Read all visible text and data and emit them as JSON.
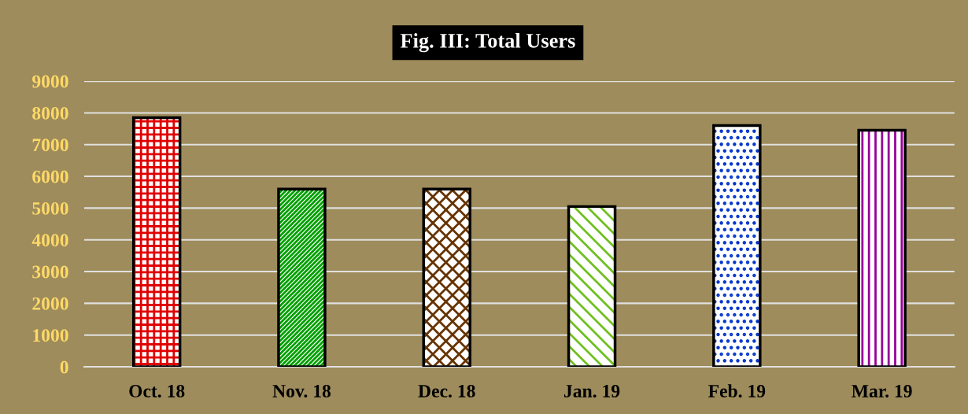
{
  "chart_data": {
    "type": "bar",
    "title": "Fig. III: Total Users",
    "categories": [
      "Oct. 18",
      "Nov. 18",
      "Dec. 18",
      "Jan. 19",
      "Feb. 19",
      "Mar. 19"
    ],
    "values": [
      7850,
      5600,
      5600,
      5050,
      7600,
      7450
    ],
    "colors": [
      "#e00000",
      "#00a000",
      "#663300",
      "#70c020",
      "#0033cc",
      "#990099"
    ],
    "ylim": [
      0,
      9000
    ],
    "yticks": [
      0,
      1000,
      2000,
      3000,
      4000,
      5000,
      6000,
      7000,
      8000,
      9000
    ],
    "grid": "y"
  }
}
